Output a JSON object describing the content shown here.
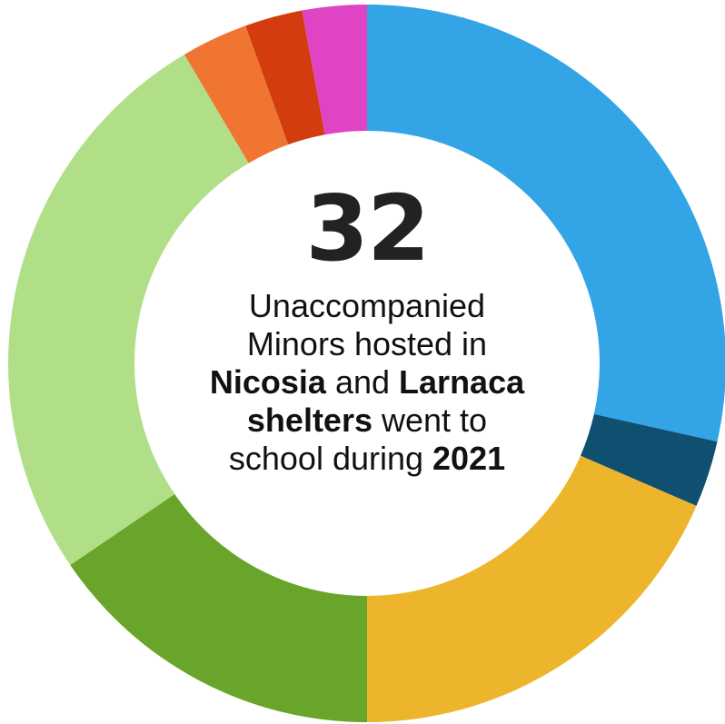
{
  "chart_data": {
    "type": "donut",
    "slices": [
      {
        "value": 28.5,
        "color": "#33a4e6"
      },
      {
        "value": 3.0,
        "color": "#0f4f70"
      },
      {
        "value": 18.5,
        "color": "#edb52c"
      },
      {
        "value": 15.5,
        "color": "#68a52a"
      },
      {
        "value": 26.0,
        "color": "#b1df88"
      },
      {
        "value": 3.0,
        "color": "#ef7530"
      },
      {
        "value": 2.6,
        "color": "#d23c0e"
      },
      {
        "value": 2.9,
        "color": "#de44c3"
      }
    ]
  },
  "center": {
    "number": "32",
    "line1": "Unaccompanied",
    "line2": "Minors hosted in",
    "place1": "Nicosia",
    "and": "and",
    "place2": "Larnaca",
    "shelters": "shelters",
    "went_to": "went to",
    "school_during": "school during",
    "year": "2021"
  }
}
